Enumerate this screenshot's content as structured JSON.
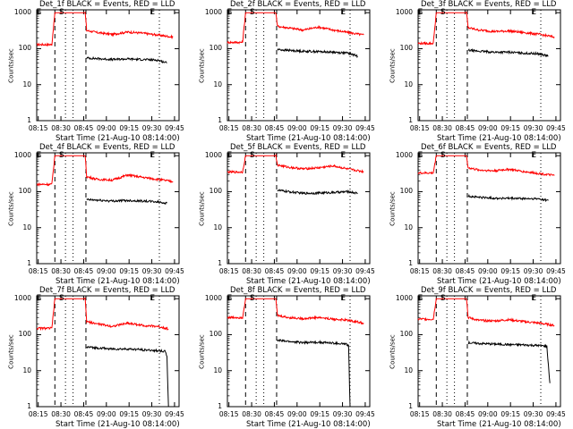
{
  "figure": {
    "xlabel": "Start Time (21-Aug-10 08:14:00)",
    "ylabel": "Counts/sec",
    "xticks": [
      "08:15",
      "08:30",
      "08:45",
      "09:00",
      "09:15",
      "09:30",
      "09:45"
    ],
    "yticks": [
      "1",
      "10",
      "100",
      "1000"
    ],
    "markers": [
      "E",
      "S",
      "E"
    ],
    "colors": {
      "events": "#000000",
      "lld": "#ff0000"
    }
  },
  "chart_data": [
    {
      "type": "line",
      "title": "Det_1f BLACK = Events, RED = LLD",
      "ylim": [
        1,
        1200
      ],
      "xlim_min": [
        0,
        94
      ],
      "series": [
        {
          "name": "LLD",
          "x": [
            0,
            10,
            12,
            20,
            32,
            33,
            40,
            50,
            60,
            70,
            80,
            90
          ],
          "values": [
            130,
            130,
            1000,
            1000,
            1000,
            320,
            280,
            250,
            290,
            270,
            240,
            210
          ]
        },
        {
          "name": "Events",
          "x": [
            33,
            40,
            50,
            60,
            70,
            80,
            86
          ],
          "values": [
            55,
            53,
            50,
            52,
            50,
            48,
            40
          ]
        }
      ]
    },
    {
      "type": "line",
      "title": "Det_2f BLACK = Events, RED = LLD",
      "ylim": [
        1,
        1200
      ],
      "xlim_min": [
        0,
        94
      ],
      "series": [
        {
          "name": "LLD",
          "x": [
            0,
            10,
            12,
            20,
            32,
            33,
            40,
            50,
            60,
            70,
            80,
            90
          ],
          "values": [
            150,
            150,
            1000,
            1000,
            1000,
            420,
            380,
            330,
            400,
            330,
            280,
            240
          ]
        },
        {
          "name": "Events",
          "x": [
            33,
            40,
            50,
            60,
            70,
            80,
            86
          ],
          "values": [
            95,
            90,
            85,
            83,
            80,
            75,
            62
          ]
        }
      ]
    },
    {
      "type": "line",
      "title": "Det_3f BLACK = Events, RED = LLD",
      "ylim": [
        1,
        1200
      ],
      "xlim_min": [
        0,
        94
      ],
      "series": [
        {
          "name": "LLD",
          "x": [
            0,
            10,
            12,
            20,
            32,
            33,
            40,
            50,
            60,
            70,
            80,
            90
          ],
          "values": [
            140,
            140,
            1000,
            1000,
            1000,
            380,
            330,
            300,
            310,
            280,
            250,
            210
          ]
        },
        {
          "name": "Events",
          "x": [
            33,
            40,
            50,
            60,
            70,
            80,
            86
          ],
          "values": [
            90,
            85,
            80,
            80,
            75,
            72,
            62
          ]
        }
      ]
    },
    {
      "type": "line",
      "title": "Det_4f BLACK = Events, RED = LLD",
      "ylim": [
        1,
        1200
      ],
      "xlim_min": [
        0,
        94
      ],
      "series": [
        {
          "name": "LLD",
          "x": [
            0,
            10,
            12,
            20,
            32,
            33,
            40,
            50,
            60,
            70,
            80,
            90
          ],
          "values": [
            160,
            160,
            1000,
            1000,
            1000,
            260,
            220,
            210,
            290,
            250,
            220,
            190
          ]
        },
        {
          "name": "Events",
          "x": [
            33,
            40,
            50,
            60,
            70,
            80,
            86
          ],
          "values": [
            60,
            58,
            55,
            57,
            55,
            52,
            48
          ]
        }
      ]
    },
    {
      "type": "line",
      "title": "Det_5f BLACK = Events, RED = LLD",
      "ylim": [
        1,
        1200
      ],
      "xlim_min": [
        0,
        94
      ],
      "series": [
        {
          "name": "LLD",
          "x": [
            0,
            10,
            12,
            20,
            32,
            33,
            40,
            50,
            60,
            70,
            80,
            90
          ],
          "values": [
            350,
            350,
            1000,
            1000,
            1000,
            550,
            480,
            430,
            460,
            520,
            420,
            360
          ]
        },
        {
          "name": "Events",
          "x": [
            33,
            40,
            50,
            60,
            70,
            80,
            86
          ],
          "values": [
            110,
            100,
            90,
            92,
            95,
            100,
            90
          ]
        }
      ]
    },
    {
      "type": "line",
      "title": "Det_6f BLACK = Events, RED = LLD",
      "ylim": [
        1,
        1200
      ],
      "xlim_min": [
        0,
        94
      ],
      "series": [
        {
          "name": "LLD",
          "x": [
            0,
            10,
            12,
            20,
            32,
            33,
            40,
            50,
            60,
            70,
            80,
            90
          ],
          "values": [
            330,
            330,
            1000,
            1000,
            1000,
            460,
            400,
            380,
            420,
            360,
            320,
            280
          ]
        },
        {
          "name": "Events",
          "x": [
            33,
            40,
            50,
            60,
            70,
            80,
            86
          ],
          "values": [
            75,
            70,
            66,
            65,
            64,
            63,
            57
          ]
        }
      ]
    },
    {
      "type": "line",
      "title": "Det_7f BLACK = Events, RED = LLD",
      "ylim": [
        1,
        1200
      ],
      "xlim_min": [
        0,
        94
      ],
      "series": [
        {
          "name": "LLD",
          "x": [
            0,
            10,
            12,
            20,
            32,
            33,
            40,
            50,
            60,
            70,
            80,
            86,
            87
          ],
          "values": [
            150,
            150,
            1000,
            1000,
            1000,
            230,
            200,
            170,
            210,
            180,
            170,
            150,
            140
          ]
        },
        {
          "name": "Events",
          "x": [
            33,
            40,
            50,
            60,
            70,
            80,
            85,
            86,
            87
          ],
          "values": [
            45,
            43,
            40,
            40,
            38,
            36,
            34,
            25,
            1
          ]
        }
      ]
    },
    {
      "type": "line",
      "title": "Det_8f BLACK = Events, RED = LLD",
      "ylim": [
        1,
        1200
      ],
      "xlim_min": [
        0,
        94
      ],
      "series": [
        {
          "name": "LLD",
          "x": [
            0,
            10,
            12,
            20,
            32,
            33,
            40,
            50,
            60,
            70,
            80,
            90
          ],
          "values": [
            300,
            300,
            1000,
            1000,
            1000,
            340,
            300,
            280,
            300,
            270,
            250,
            210
          ]
        },
        {
          "name": "Events",
          "x": [
            33,
            40,
            50,
            60,
            70,
            78,
            80,
            81
          ],
          "values": [
            70,
            65,
            60,
            62,
            58,
            55,
            50,
            1
          ]
        }
      ]
    },
    {
      "type": "line",
      "title": "Det_9f BLACK = Events, RED = LLD",
      "ylim": [
        1,
        1200
      ],
      "xlim_min": [
        0,
        94
      ],
      "series": [
        {
          "name": "LLD",
          "x": [
            0,
            10,
            12,
            20,
            32,
            33,
            40,
            50,
            60,
            70,
            80,
            90
          ],
          "values": [
            270,
            270,
            1000,
            1000,
            1000,
            300,
            250,
            240,
            260,
            230,
            210,
            180
          ]
        },
        {
          "name": "Events",
          "x": [
            33,
            40,
            50,
            60,
            70,
            80,
            85,
            87
          ],
          "values": [
            60,
            57,
            55,
            53,
            52,
            50,
            48,
            4.5
          ]
        }
      ]
    }
  ]
}
